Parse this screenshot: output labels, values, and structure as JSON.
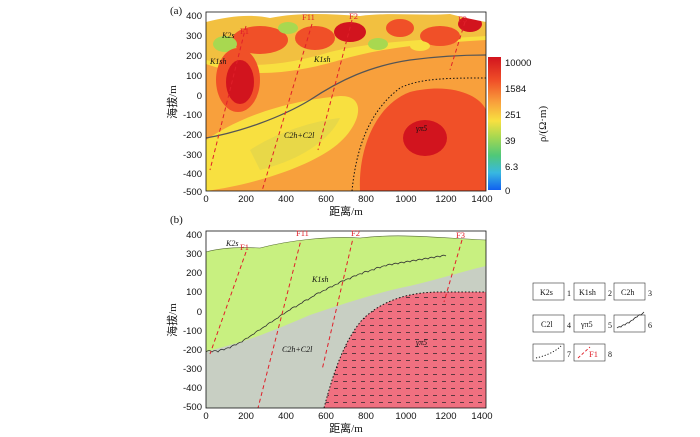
{
  "panel_a": {
    "label": "(a)",
    "y_ticks": [
      "400",
      "300",
      "200",
      "100",
      "0",
      "-100",
      "-200",
      "-300",
      "-400",
      "-500"
    ],
    "x_ticks": [
      "0",
      "200",
      "400",
      "600",
      "800",
      "1000",
      "1200",
      "1400"
    ],
    "y_axis_label": "海拔/m",
    "x_axis_label": "距离/m",
    "faults": [
      "F1",
      "F11",
      "F2",
      "F3"
    ],
    "units": [
      "K2s",
      "K1sh",
      "K1sh",
      "C2h+C2l",
      "γπ5"
    ],
    "colorbar": {
      "label": "ρ/(Ω·m)",
      "ticks": [
        "10000",
        "1584",
        "251",
        "39",
        "6.3",
        "0"
      ],
      "colors": [
        "#d2141e",
        "#f05028",
        "#f8a03c",
        "#f8e040",
        "#a8d850",
        "#50c878",
        "#38b8e0",
        "#1060f0"
      ]
    }
  },
  "panel_b": {
    "label": "(b)",
    "y_ticks": [
      "400",
      "300",
      "200",
      "100",
      "0",
      "-100",
      "-200",
      "-300",
      "-400",
      "-500"
    ],
    "x_ticks": [
      "0",
      "200",
      "400",
      "600",
      "800",
      "1000",
      "1200",
      "1400"
    ],
    "y_axis_label": "海拔/m",
    "x_axis_label": "距离/m",
    "faults": [
      "F1",
      "F11",
      "F2",
      "F3"
    ],
    "units": [
      "K2s",
      "K1sh",
      "C2h+C2l",
      "γπ5"
    ],
    "colors": {
      "K1sh": "#c8f080",
      "C2": "#c8cfc3",
      "granite": "#f07080"
    }
  },
  "legend": {
    "items": [
      {
        "symbol": "K2s",
        "num": "1"
      },
      {
        "symbol": "K1sh",
        "num": "2"
      },
      {
        "symbol": "C2h",
        "num": "3"
      },
      {
        "symbol": "C2l",
        "num": "4"
      },
      {
        "symbol": "γπ5",
        "num": "5"
      },
      {
        "symbol": "unconformity",
        "num": "6"
      },
      {
        "symbol": "contact",
        "num": "7"
      },
      {
        "symbol": "F1",
        "num": "8"
      }
    ]
  }
}
